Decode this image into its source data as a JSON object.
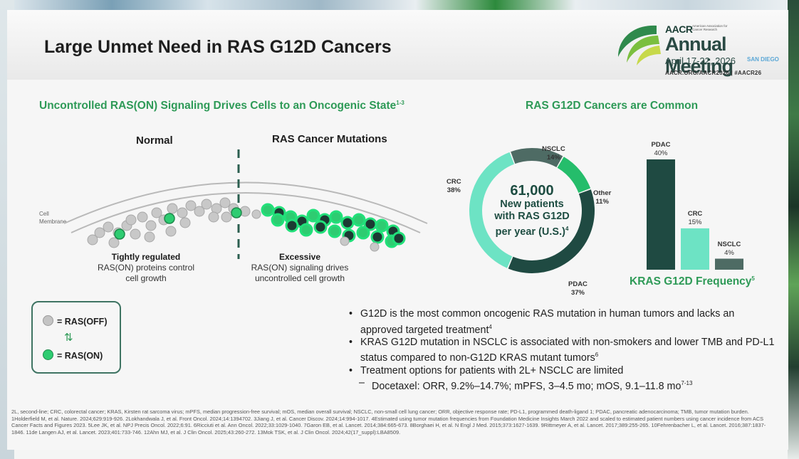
{
  "slide": {
    "title": "Large Unmet Need in RAS G12D Cancers",
    "conference": {
      "brand": "AACR",
      "brand_sub": "American Association for Cancer Research",
      "meeting": "Annual Meeting",
      "dates": "April 17-22, 2026",
      "city": "SAN DIEGO",
      "url": "AACR.ORG/AACR2026 | #AACR26"
    },
    "left_section": {
      "heading": "Uncontrolled RAS(ON) Signaling Drives Cells to an Oncogenic State",
      "heading_sup": "1-3",
      "normal_label": "Normal",
      "mutation_label": "RAS Cancer Mutations",
      "membrane_label_1": "Cell",
      "membrane_label_2": "Membrane",
      "normal_caption_title": "Tightly regulated",
      "normal_caption_l1": "RAS(ON) proteins control",
      "normal_caption_l2": "cell growth",
      "mutation_caption_title": "Excessive",
      "mutation_caption_l1": "RAS(ON) signaling drives",
      "mutation_caption_l2": "uncontrolled cell growth",
      "legend_off": "= RAS(OFF)",
      "legend_on": "= RAS(ON)"
    },
    "right_section": {
      "heading": "RAS G12D Cancers are Common",
      "donut_center_big": "61,000",
      "donut_center_l1": "New patients",
      "donut_center_l2": "with RAS G12D",
      "donut_center_l3": "per year (U.S.)",
      "donut_center_sup": "4",
      "frequency_title": "KRAS G12D Frequency",
      "frequency_sup": "5"
    },
    "bullets": {
      "b1": "G12D is the most common oncogenic RAS mutation in human tumors and lacks an approved targeted treatment",
      "b1_sup": "4",
      "b2": "KRAS G12D mutation in NSCLC is associated with non-smokers and lower TMB and PD-L1 status compared to non-G12D KRAS mutant tumors",
      "b2_sup": "6",
      "b3": "Treatment options for patients with 2L+ NSCLC are limited",
      "b3_sub": "Docetaxel: ORR, 9.2%–14.7%; mPFS, 3–4.5 mo; mOS, 9.1–11.8 mo",
      "b3_sub_sup": "7-13"
    },
    "footnote": "2L, second-line; CRC, colorectal cancer; KRAS, Kirsten rat sarcoma virus; mPFS, median progression-free survival; mOS, median overall survival; NSCLC, non-small cell lung cancer; ORR, objective response rate; PD-L1, programmed death-ligand 1; PDAC, pancreatic adenocarcinoma; TMB, tumor mutation burden. 1Holderfield M, et al. Nature. 2024;629:919-926. 2Lokhandwala J, et al. Front Oncol. 2024;14:1394702. 3Jiang J, et al. Cancer Discov. 2024;14:994-1017. 4Estimated using tumor mutation frequencies from Foundation Medicine Insights March 2022 and scaled to estimated patient numbers using cancer incidence from ACS Cancer Facts and Figures 2023. 5Lee JK, et al. NPJ Precis Oncol. 2022;6:91. 6Ricciuti et al. Ann Oncol. 2022;33:1029-1040. 7Garon EB, et al. Lancet. 2014;384:665-673. 8Borghaei H, et al. N Engl J Med. 2015;373:1627-1639. 9Rittmeyer A, et al. Lancet. 2017;389:255-265. 10Fehrenbacher L, et al. Lancet. 2016;387:1837-1846. 11de Langen AJ, et al. Lancet. 2023;401:733-746. 12Ahn MJ, et al. J Clin Oncol. 2025;43:260-272. 13Mok TSK, et al. J Clin Oncol. 2024;42(17_suppl):LBA8509."
  },
  "chart_data": [
    {
      "type": "pie",
      "title": "RAS G12D Cancers are Common",
      "categories": [
        "NSCLC",
        "Other",
        "PDAC",
        "CRC"
      ],
      "values": [
        14,
        11,
        37,
        38
      ],
      "value_labels": [
        "14%",
        "11%",
        "37%",
        "38%"
      ],
      "colors": [
        "#4e6b64",
        "#25bd6b",
        "#1f4a42",
        "#6de3c4"
      ]
    },
    {
      "type": "bar",
      "title": "KRAS G12D Frequency",
      "categories": [
        "PDAC",
        "CRC",
        "NSCLC"
      ],
      "values": [
        40,
        15,
        4
      ],
      "value_labels": [
        "40%",
        "15%",
        "4%"
      ],
      "colors": [
        "#1f4a42",
        "#6de3c4",
        "#4e6b64"
      ],
      "ylim": [
        0,
        40
      ]
    }
  ],
  "colors": {
    "accent": "#2e9a57",
    "dark_green": "#1f4a42",
    "on_green": "#2ecc71",
    "off_grey": "#c4c4c4"
  }
}
